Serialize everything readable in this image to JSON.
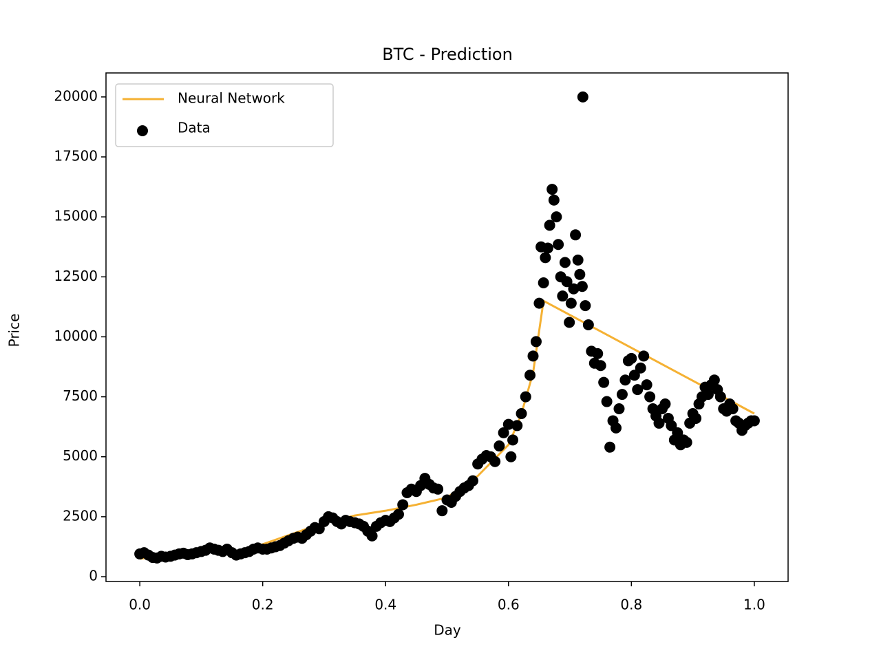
{
  "chart_data": {
    "type": "scatter",
    "title": "BTC - Prediction",
    "x_label": "Day",
    "y_label": "Price",
    "xlim": [
      -0.055,
      1.055
    ],
    "ylim": [
      -200,
      21000
    ],
    "xticks": [
      {
        "value": 0,
        "label": "0.0"
      },
      0.2,
      0.4,
      0.6,
      0.8,
      {
        "value": 1,
        "label": "1.0"
      }
    ],
    "yticks": [
      0,
      2500,
      5000,
      7500,
      10000,
      12500,
      15000,
      17500,
      20000
    ],
    "legend": "upper left",
    "series": [
      {
        "name": "Neural Network",
        "type": "line",
        "color": "#f5b133",
        "x": [
          0,
          0.05,
          0.085,
          0.105,
          0.15,
          0.2,
          0.25,
          0.3,
          0.35,
          0.4,
          0.45,
          0.5,
          0.55,
          0.6,
          0.62,
          0.64,
          0.657,
          1.0
        ],
        "values": [
          750,
          900,
          950,
          1100,
          950,
          1350,
          1800,
          2250,
          2550,
          2750,
          3000,
          3300,
          4200,
          5500,
          6700,
          8500,
          11500,
          6800
        ]
      },
      {
        "name": "Data",
        "type": "scatter",
        "color": "#000000",
        "x": [
          0,
          0.007,
          0.014,
          0.021,
          0.028,
          0.035,
          0.042,
          0.05,
          0.057,
          0.064,
          0.071,
          0.078,
          0.085,
          0.092,
          0.1,
          0.107,
          0.114,
          0.121,
          0.128,
          0.135,
          0.142,
          0.15,
          0.157,
          0.164,
          0.171,
          0.178,
          0.185,
          0.192,
          0.2,
          0.207,
          0.214,
          0.221,
          0.228,
          0.235,
          0.242,
          0.25,
          0.257,
          0.264,
          0.271,
          0.278,
          0.285,
          0.292,
          0.3,
          0.307,
          0.314,
          0.321,
          0.328,
          0.335,
          0.342,
          0.35,
          0.357,
          0.364,
          0.371,
          0.378,
          0.385,
          0.392,
          0.4,
          0.407,
          0.414,
          0.421,
          0.428,
          0.435,
          0.442,
          0.45,
          0.457,
          0.464,
          0.471,
          0.478,
          0.485,
          0.492,
          0.5,
          0.507,
          0.514,
          0.521,
          0.528,
          0.535,
          0.542,
          0.55,
          0.557,
          0.564,
          0.571,
          0.578,
          0.585,
          0.592,
          0.6,
          0.604,
          0.607,
          0.614,
          0.621,
          0.628,
          0.635,
          0.64,
          0.645,
          0.65,
          0.653,
          0.657,
          0.66,
          0.664,
          0.667,
          0.671,
          0.674,
          0.678,
          0.681,
          0.685,
          0.688,
          0.692,
          0.695,
          0.699,
          0.702,
          0.706,
          0.709,
          0.713,
          0.716,
          0.72,
          0.721,
          0.725,
          0.73,
          0.735,
          0.74,
          0.745,
          0.75,
          0.755,
          0.76,
          0.765,
          0.77,
          0.775,
          0.78,
          0.785,
          0.79,
          0.795,
          0.8,
          0.805,
          0.81,
          0.815,
          0.82,
          0.825,
          0.83,
          0.835,
          0.84,
          0.845,
          0.85,
          0.855,
          0.86,
          0.865,
          0.87,
          0.875,
          0.88,
          0.885,
          0.89,
          0.895,
          0.9,
          0.905,
          0.91,
          0.915,
          0.92,
          0.925,
          0.93,
          0.935,
          0.94,
          0.945,
          0.95,
          0.955,
          0.96,
          0.965,
          0.97,
          0.975,
          0.98,
          0.985,
          0.99,
          0.995,
          1.0
        ],
        "values": [
          950,
          1000,
          900,
          800,
          780,
          850,
          820,
          850,
          900,
          950,
          980,
          920,
          950,
          1000,
          1050,
          1100,
          1200,
          1150,
          1100,
          1050,
          1150,
          1000,
          900,
          950,
          1000,
          1050,
          1150,
          1200,
          1150,
          1150,
          1200,
          1250,
          1300,
          1400,
          1500,
          1600,
          1650,
          1600,
          1750,
          1900,
          2050,
          2000,
          2300,
          2500,
          2450,
          2300,
          2200,
          2350,
          2300,
          2250,
          2200,
          2100,
          1900,
          1700,
          2100,
          2250,
          2350,
          2300,
          2450,
          2600,
          3000,
          3500,
          3650,
          3550,
          3800,
          4100,
          3850,
          3700,
          3650,
          2750,
          3200,
          3100,
          3350,
          3550,
          3700,
          3800,
          4000,
          4700,
          4900,
          5050,
          5000,
          4800,
          5450,
          6000,
          6350,
          5000,
          5700,
          6300,
          6800,
          7500,
          8400,
          9200,
          9800,
          11400,
          13750,
          12250,
          13300,
          13700,
          14650,
          16150,
          15700,
          15000,
          13850,
          12500,
          11700,
          13100,
          12300,
          10600,
          11400,
          12000,
          14250,
          13200,
          12600,
          12100,
          20000,
          11300,
          10500,
          9400,
          8900,
          9300,
          8800,
          8100,
          7300,
          5400,
          6500,
          6200,
          7000,
          7600,
          8200,
          9000,
          9100,
          8400,
          7800,
          8700,
          9200,
          8000,
          7500,
          7000,
          6700,
          6400,
          7000,
          7200,
          6600,
          6300,
          5700,
          6000,
          5500,
          5700,
          5600,
          6400,
          6800,
          6600,
          7200,
          7500,
          7900,
          7600,
          8000,
          8200,
          7800,
          7500,
          7000,
          6900,
          7200,
          7000,
          6500,
          6400,
          6100,
          6300,
          6400,
          6500,
          6500
        ]
      }
    ]
  }
}
